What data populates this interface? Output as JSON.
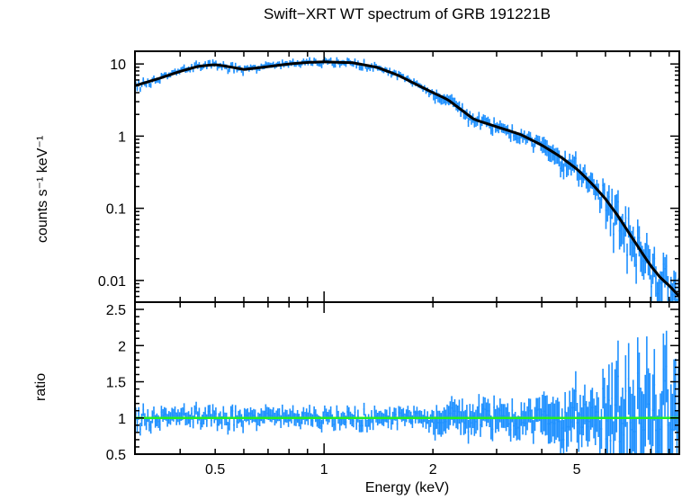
{
  "chart_data": [
    {
      "type": "scatter",
      "panel": "spectrum",
      "title": "Swift−XRT WT spectrum of GRB 191221B",
      "ylabel": "counts s⁻¹ keV⁻¹",
      "xscale": "log",
      "yscale": "log",
      "xlim": [
        0.3,
        9.6
      ],
      "ylim": [
        0.005,
        15
      ],
      "yticks": [
        0.01,
        0.1,
        1,
        10
      ],
      "ytick_labels": [
        "0.01",
        "0.1",
        "1",
        "10"
      ],
      "colors": {
        "data": "#1e90ff",
        "model": "#000000"
      },
      "model": {
        "x": [
          0.3,
          0.35,
          0.4,
          0.45,
          0.5,
          0.55,
          0.6,
          0.7,
          0.8,
          0.9,
          1.0,
          1.2,
          1.4,
          1.6,
          1.8,
          2.0,
          2.2,
          2.4,
          2.6,
          3.0,
          3.5,
          4.0,
          4.5,
          5.0,
          5.5,
          6.0,
          6.5,
          7.0,
          7.5,
          8.0,
          8.5,
          9.0,
          9.6
        ],
        "y": [
          5.0,
          6.3,
          7.9,
          9.3,
          9.8,
          9.1,
          8.4,
          9.2,
          10.0,
          10.5,
          10.7,
          10.4,
          9.0,
          7.0,
          5.2,
          4.0,
          3.2,
          2.3,
          1.7,
          1.35,
          1.05,
          0.75,
          0.52,
          0.35,
          0.22,
          0.135,
          0.078,
          0.044,
          0.026,
          0.016,
          0.011,
          0.0085,
          0.006
        ]
      }
    },
    {
      "type": "scatter",
      "panel": "ratio",
      "ylabel": "ratio",
      "xlabel": "Energy (keV)",
      "xscale": "log",
      "xlim": [
        0.3,
        9.6
      ],
      "ylim": [
        0.5,
        2.6
      ],
      "xticks": [
        0.5,
        1,
        2,
        5
      ],
      "xtick_labels": [
        "0.5",
        "1",
        "2",
        "5"
      ],
      "yticks": [
        0.5,
        1,
        1.5,
        2,
        2.5
      ],
      "ytick_labels": [
        "0.5",
        "1",
        "1.5",
        "2",
        "2.5"
      ],
      "reference_line": {
        "y": 1.0,
        "color": "#22ee22"
      },
      "colors": {
        "data": "#1e90ff"
      }
    }
  ]
}
